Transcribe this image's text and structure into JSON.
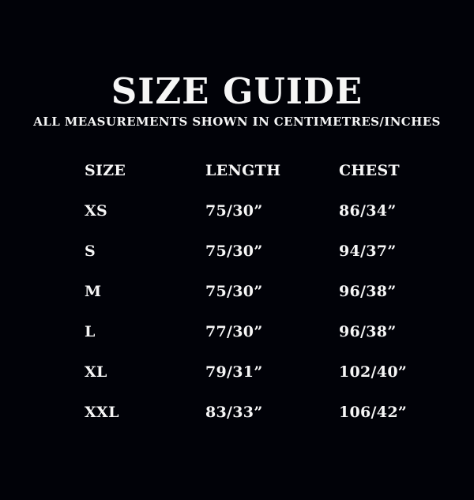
{
  "page": {
    "title": "SIZE GUIDE",
    "subtitle": "ALL MEASUREMENTS SHOWN IN CENTIMETRES/INCHES"
  },
  "table": {
    "headers": [
      "SIZE",
      "LENGTH",
      "CHEST"
    ],
    "rows": [
      {
        "size": "XS",
        "length": "75/30”",
        "chest": "86/34”"
      },
      {
        "size": "S",
        "length": "75/30”",
        "chest": "94/37”"
      },
      {
        "size": "M",
        "length": "75/30”",
        "chest": "96/38”"
      },
      {
        "size": "L",
        "length": "77/30”",
        "chest": "96/38”"
      },
      {
        "size": "XL",
        "length": "79/31”",
        "chest": "102/40”"
      },
      {
        "size": "XXL",
        "length": "83/33”",
        "chest": "106/42”"
      }
    ]
  },
  "colors": {
    "background": "#010208",
    "text": "#f6f6f6"
  }
}
